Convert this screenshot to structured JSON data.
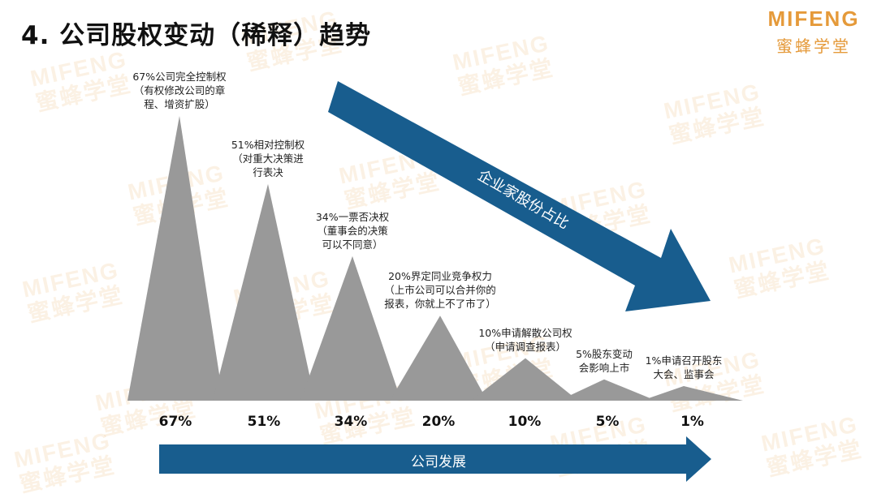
{
  "title": "4. 公司股权变动（稀释）趋势",
  "logo": {
    "en": "MIFENG",
    "cn": "蜜蜂学堂"
  },
  "watermark": {
    "en": "MIFENG",
    "cn": "蜜蜂学堂"
  },
  "colors": {
    "peak": "#999999",
    "arrow": "#185d8e",
    "logo": "#e59a3a"
  },
  "arrows": {
    "growth": "公司发展",
    "share": "企业家股份占比"
  },
  "chart_data": {
    "type": "area",
    "categories": [
      "67%",
      "51%",
      "34%",
      "20%",
      "10%",
      "5%",
      "1%"
    ],
    "values": [
      67,
      51,
      34,
      20,
      10,
      5,
      1
    ],
    "annotations": [
      [
        "67%公司完全控制权",
        "（有权修改公司的章",
        "程、增资扩股）"
      ],
      [
        "51%相对控制权",
        "（对重大决策进",
        "行表决"
      ],
      [
        "34%一票否决权",
        "（董事会的决策",
        "可以不同意）"
      ],
      [
        "20%界定同业竞争权力",
        "（上市公司可以合并你的",
        "报表，你就上不了市了）"
      ],
      [
        "10%申请解散公司权",
        "（申请调查报表）"
      ],
      [
        "5%股东变动",
        "会影响上市"
      ],
      [
        "1%申请召开股东",
        "大会、监事会"
      ]
    ]
  }
}
